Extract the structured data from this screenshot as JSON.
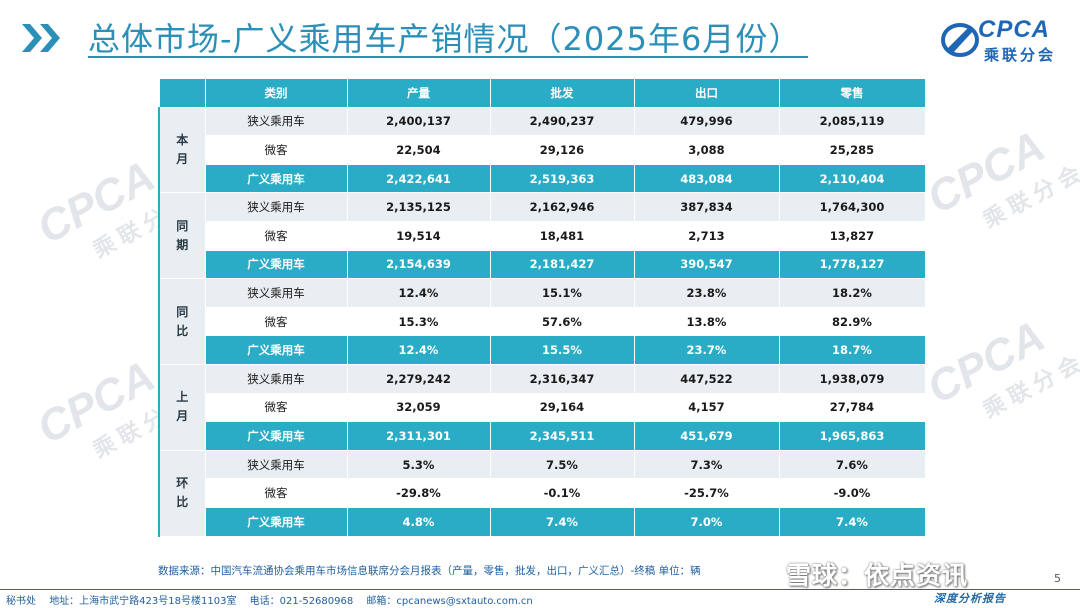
{
  "header": {
    "title": "总体市场-广义乘用车产销情况（2025年6月份）",
    "logo_en": "CPCA",
    "logo_cn": "乘联分会",
    "accent_color": "#2b8fb8"
  },
  "table": {
    "columns": [
      "类别",
      "产量",
      "批发",
      "出口",
      "零售"
    ],
    "groups": [
      {
        "label": "本月",
        "rows": [
          {
            "category": "狭义乘用车",
            "values": [
              "2,400,137",
              "2,490,237",
              "479,996",
              "2,085,119"
            ]
          },
          {
            "category": "微客",
            "values": [
              "22,504",
              "29,126",
              "3,088",
              "25,285"
            ]
          },
          {
            "category": "广义乘用车",
            "values": [
              "2,422,641",
              "2,519,363",
              "483,084",
              "2,110,404"
            ]
          }
        ]
      },
      {
        "label": "同期",
        "rows": [
          {
            "category": "狭义乘用车",
            "values": [
              "2,135,125",
              "2,162,946",
              "387,834",
              "1,764,300"
            ]
          },
          {
            "category": "微客",
            "values": [
              "19,514",
              "18,481",
              "2,713",
              "13,827"
            ]
          },
          {
            "category": "广义乘用车",
            "values": [
              "2,154,639",
              "2,181,427",
              "390,547",
              "1,778,127"
            ]
          }
        ]
      },
      {
        "label": "同比",
        "rows": [
          {
            "category": "狭义乘用车",
            "values": [
              "12.4%",
              "15.1%",
              "23.8%",
              "18.2%"
            ]
          },
          {
            "category": "微客",
            "values": [
              "15.3%",
              "57.6%",
              "13.8%",
              "82.9%"
            ]
          },
          {
            "category": "广义乘用车",
            "values": [
              "12.4%",
              "15.5%",
              "23.7%",
              "18.7%"
            ]
          }
        ]
      },
      {
        "label": "上月",
        "rows": [
          {
            "category": "狭义乘用车",
            "values": [
              "2,279,242",
              "2,316,347",
              "447,522",
              "1,938,079"
            ]
          },
          {
            "category": "微客",
            "values": [
              "32,059",
              "29,164",
              "4,157",
              "27,784"
            ]
          },
          {
            "category": "广义乘用车",
            "values": [
              "2,311,301",
              "2,345,511",
              "451,679",
              "1,965,863"
            ]
          }
        ]
      },
      {
        "label": "环比",
        "rows": [
          {
            "category": "狭义乘用车",
            "values": [
              "5.3%",
              "7.5%",
              "7.3%",
              "7.6%"
            ]
          },
          {
            "category": "微客",
            "values": [
              "-29.8%",
              "-0.1%",
              "-25.7%",
              "-9.0%"
            ]
          },
          {
            "category": "广义乘用车",
            "values": [
              "4.8%",
              "7.4%",
              "7.0%",
              "7.4%"
            ]
          }
        ]
      }
    ],
    "header_color": "#2bacc6"
  },
  "source_note": "数据来源：中国汽车流通协会乘用车市场信息联席分会月报表（产量，零售，批发，出口，广义汇总）-终稿    单位：辆",
  "footer": {
    "secretariat": "秘书处",
    "address": "地址：上海市武宁路423号18号楼1103室",
    "phone": "电话：021-52680968",
    "email": "邮箱：cpcanews@sxtauto.com.cn",
    "slogan": "深度分析报告",
    "page_number": "5"
  },
  "watermark": {
    "overlay_text": "雪球：依点资讯",
    "brand_en": "CPCA",
    "brand_cn": "乘联分会"
  }
}
